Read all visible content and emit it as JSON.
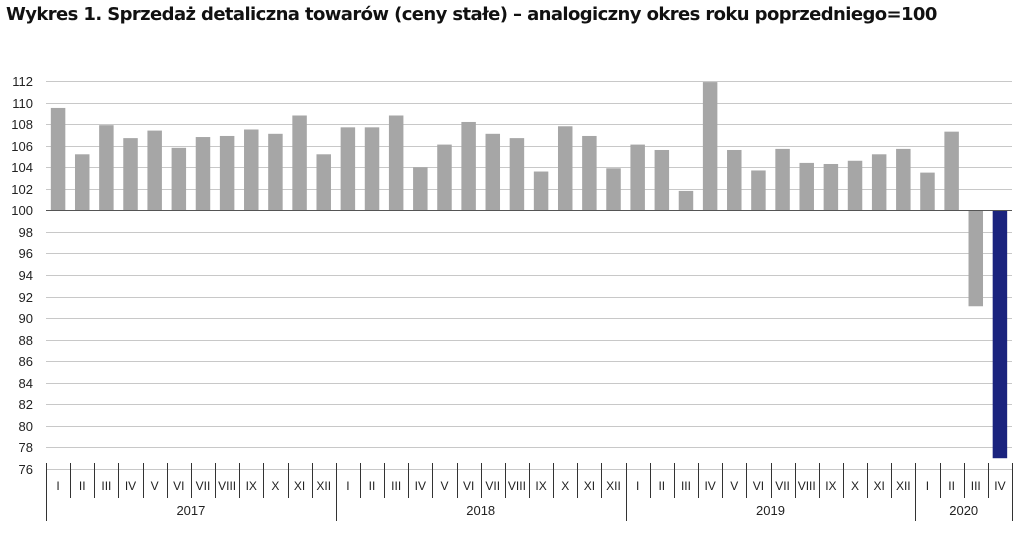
{
  "chart_data": {
    "type": "bar",
    "title": "Wykres 1. Sprzedaż detaliczna towarów (ceny stałe) – analogiczny okres roku poprzedniego=100",
    "xlabel": "",
    "ylabel": "",
    "baseline": 100,
    "ylim": [
      76,
      112
    ],
    "yticks": [
      76,
      78,
      80,
      82,
      84,
      86,
      88,
      90,
      92,
      94,
      96,
      98,
      100,
      102,
      104,
      106,
      108,
      110,
      112
    ],
    "grid": true,
    "categories": [
      "I",
      "II",
      "III",
      "IV",
      "V",
      "VI",
      "VII",
      "VIII",
      "IX",
      "X",
      "XI",
      "XII",
      "I",
      "II",
      "III",
      "IV",
      "V",
      "VI",
      "VII",
      "VIII",
      "IX",
      "X",
      "XI",
      "XII",
      "I",
      "II",
      "III",
      "IV",
      "V",
      "VI",
      "VII",
      "VIII",
      "IX",
      "X",
      "XI",
      "XII",
      "I",
      "II",
      "III",
      "IV"
    ],
    "groups": [
      {
        "label": "2017",
        "count": 12
      },
      {
        "label": "2018",
        "count": 12
      },
      {
        "label": "2019",
        "count": 12
      },
      {
        "label": "2020",
        "count": 4
      }
    ],
    "values": [
      109.5,
      105.2,
      107.9,
      106.7,
      107.4,
      105.8,
      106.8,
      106.9,
      107.5,
      107.1,
      108.8,
      105.2,
      107.7,
      107.7,
      108.8,
      104.0,
      106.1,
      108.2,
      107.1,
      106.7,
      103.6,
      107.8,
      106.9,
      103.9,
      106.1,
      105.6,
      101.8,
      111.9,
      105.6,
      103.7,
      105.7,
      104.4,
      104.3,
      104.6,
      105.2,
      105.7,
      103.5,
      107.3,
      91.1,
      77.0
    ],
    "colors": {
      "bar": "#a6a6a6",
      "highlight": "#1a237e",
      "grid": "#c8c8c8",
      "axis": "#333333"
    },
    "highlight_index": 39
  }
}
